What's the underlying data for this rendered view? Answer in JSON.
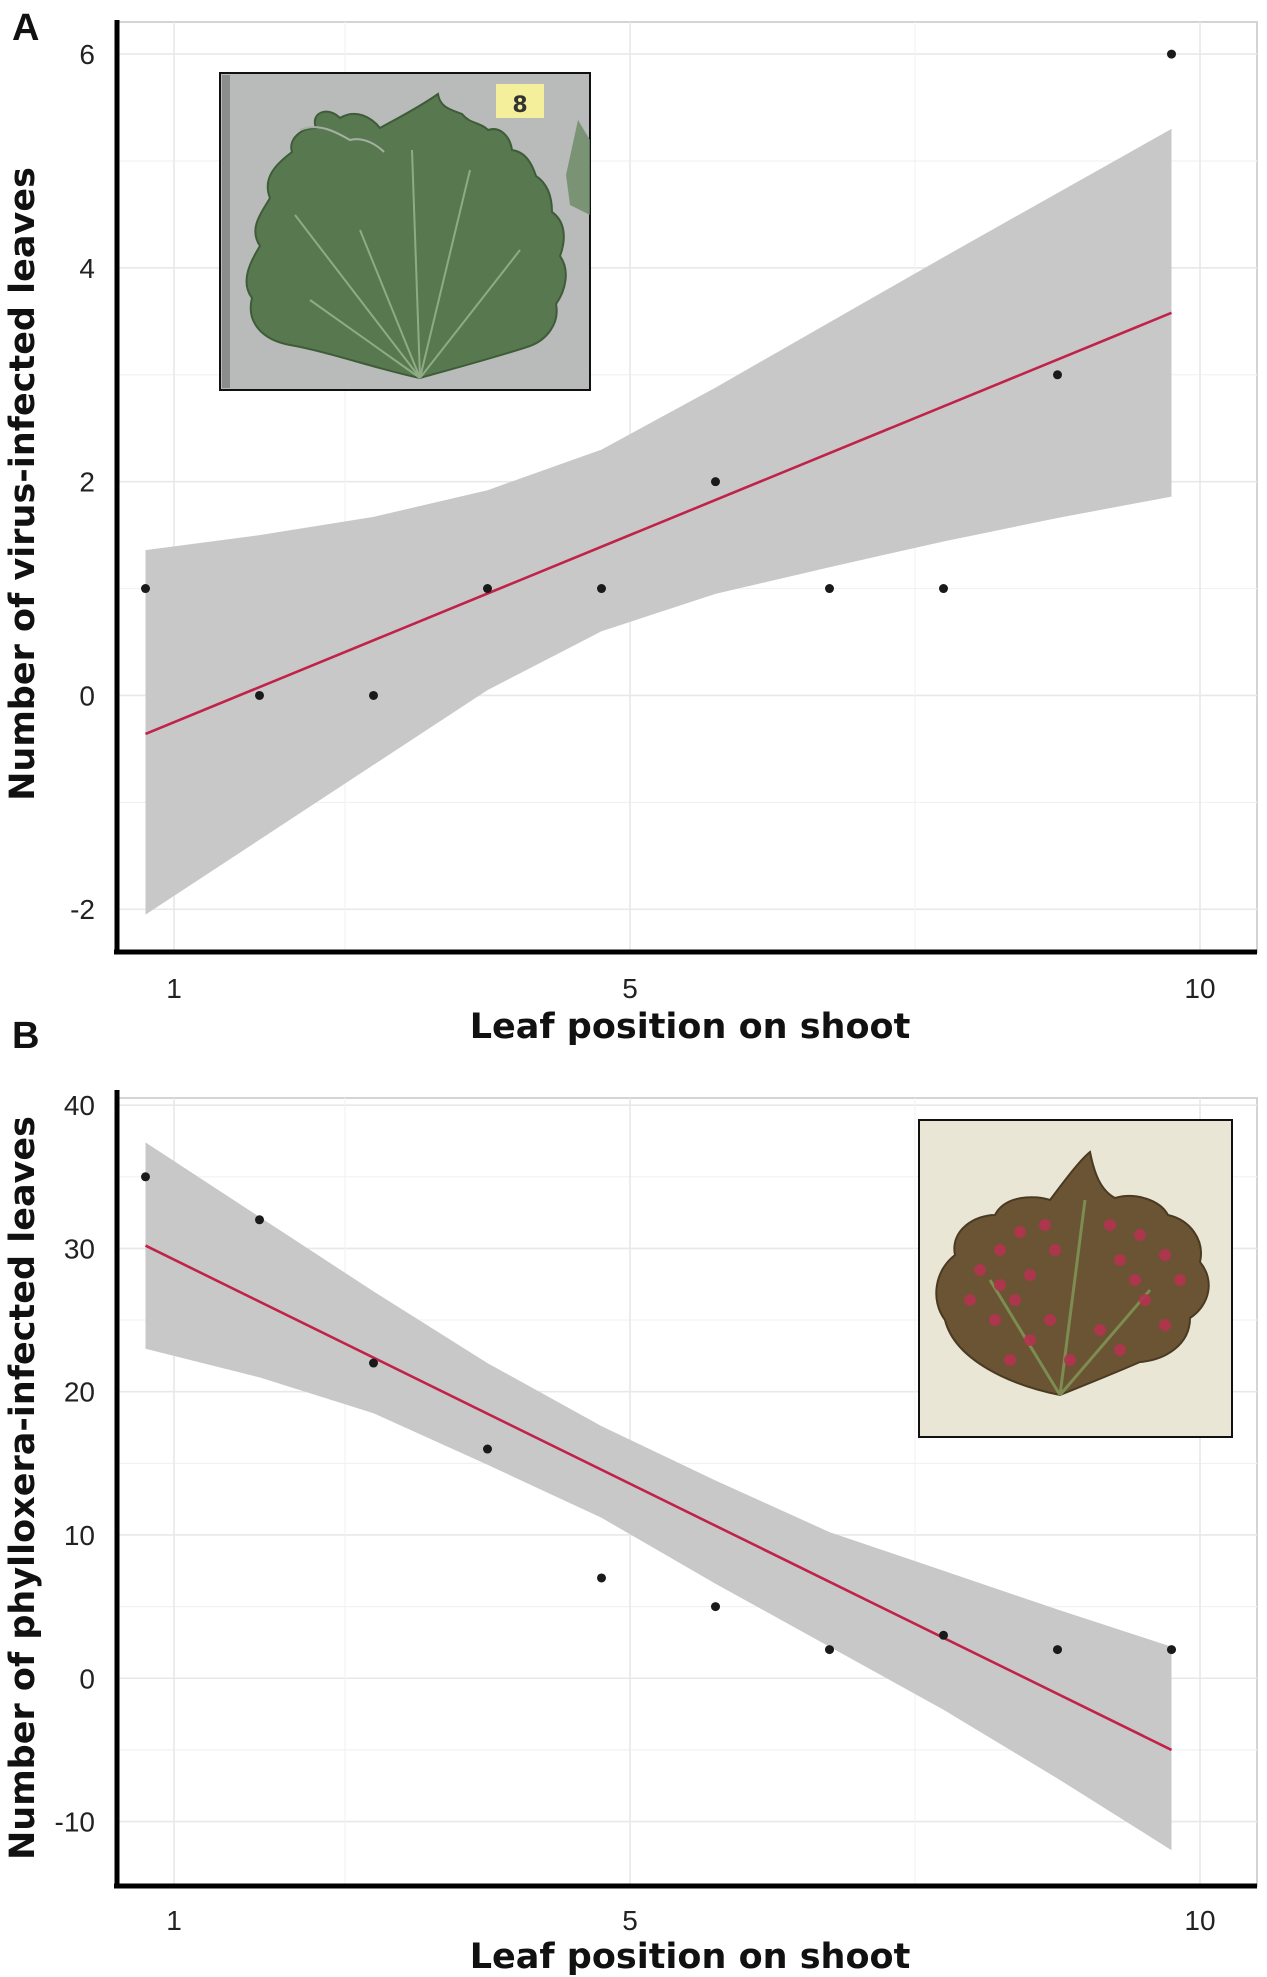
{
  "figure": {
    "background": "#ffffff",
    "fit_color": "#c0224a",
    "band_color": "#c8c8c8",
    "point_color": "#1a1a1a"
  },
  "chart_data": [
    {
      "panel": "A",
      "type": "scatter",
      "title": "",
      "xlabel": "Leaf position on shoot",
      "ylabel": "Number of virus-infected leaves",
      "xlim": [
        0.5,
        10.5
      ],
      "ylim": [
        -2.4,
        6.3
      ],
      "x_ticks": [
        1,
        5,
        10
      ],
      "y_ticks": [
        -2,
        0,
        2,
        4,
        6
      ],
      "points": [
        {
          "x": 0.75,
          "y": 1
        },
        {
          "x": 1.75,
          "y": 0
        },
        {
          "x": 2.75,
          "y": 0
        },
        {
          "x": 3.75,
          "y": 1
        },
        {
          "x": 4.75,
          "y": 1
        },
        {
          "x": 5.75,
          "y": 2
        },
        {
          "x": 6.75,
          "y": 1
        },
        {
          "x": 7.75,
          "y": 1
        },
        {
          "x": 8.75,
          "y": 3
        },
        {
          "x": 9.75,
          "y": 6
        }
      ],
      "fit": {
        "x": [
          0.75,
          9.75
        ],
        "y": [
          -0.36,
          3.58
        ]
      },
      "ci_band": {
        "x": [
          0.75,
          1.75,
          2.75,
          3.75,
          4.75,
          5.75,
          6.75,
          7.75,
          8.75,
          9.75
        ],
        "upper": [
          1.36,
          1.5,
          1.67,
          1.92,
          2.3,
          2.88,
          3.49,
          4.1,
          4.7,
          5.3
        ],
        "lower": [
          -2.05,
          -1.35,
          -0.65,
          0.05,
          0.6,
          0.95,
          1.2,
          1.44,
          1.66,
          1.86
        ]
      },
      "legend": "none",
      "inset_image": "green-leaf-scan"
    },
    {
      "panel": "B",
      "type": "scatter",
      "title": "",
      "xlabel": "Leaf position on shoot",
      "ylabel": "Number of phylloxera-infected leaves",
      "xlim": [
        0.5,
        10.5
      ],
      "ylim": [
        -14.5,
        40.5
      ],
      "x_ticks": [
        1,
        5,
        10
      ],
      "y_ticks": [
        -10,
        0,
        10,
        20,
        30,
        40
      ],
      "points": [
        {
          "x": 0.75,
          "y": 35
        },
        {
          "x": 1.75,
          "y": 32
        },
        {
          "x": 2.75,
          "y": 22
        },
        {
          "x": 3.75,
          "y": 16
        },
        {
          "x": 4.75,
          "y": 7
        },
        {
          "x": 5.75,
          "y": 5
        },
        {
          "x": 6.75,
          "y": 2
        },
        {
          "x": 7.75,
          "y": 3
        },
        {
          "x": 8.75,
          "y": 2
        },
        {
          "x": 9.75,
          "y": 2
        }
      ],
      "fit": {
        "x": [
          0.75,
          9.75
        ],
        "y": [
          30.2,
          -5.0
        ]
      },
      "ci_band": {
        "x": [
          0.75,
          1.75,
          2.75,
          3.75,
          4.75,
          5.75,
          6.75,
          7.75,
          8.75,
          9.75
        ],
        "upper": [
          37.4,
          32.2,
          27.0,
          22.0,
          17.6,
          13.8,
          10.2,
          7.5,
          4.8,
          2.2
        ],
        "lower": [
          23.0,
          21.0,
          18.5,
          14.9,
          11.2,
          6.6,
          2.2,
          -2.2,
          -7.0,
          -12.0
        ]
      },
      "legend": "none",
      "inset_image": "phylloxera-galled-leaf-scan"
    }
  ]
}
